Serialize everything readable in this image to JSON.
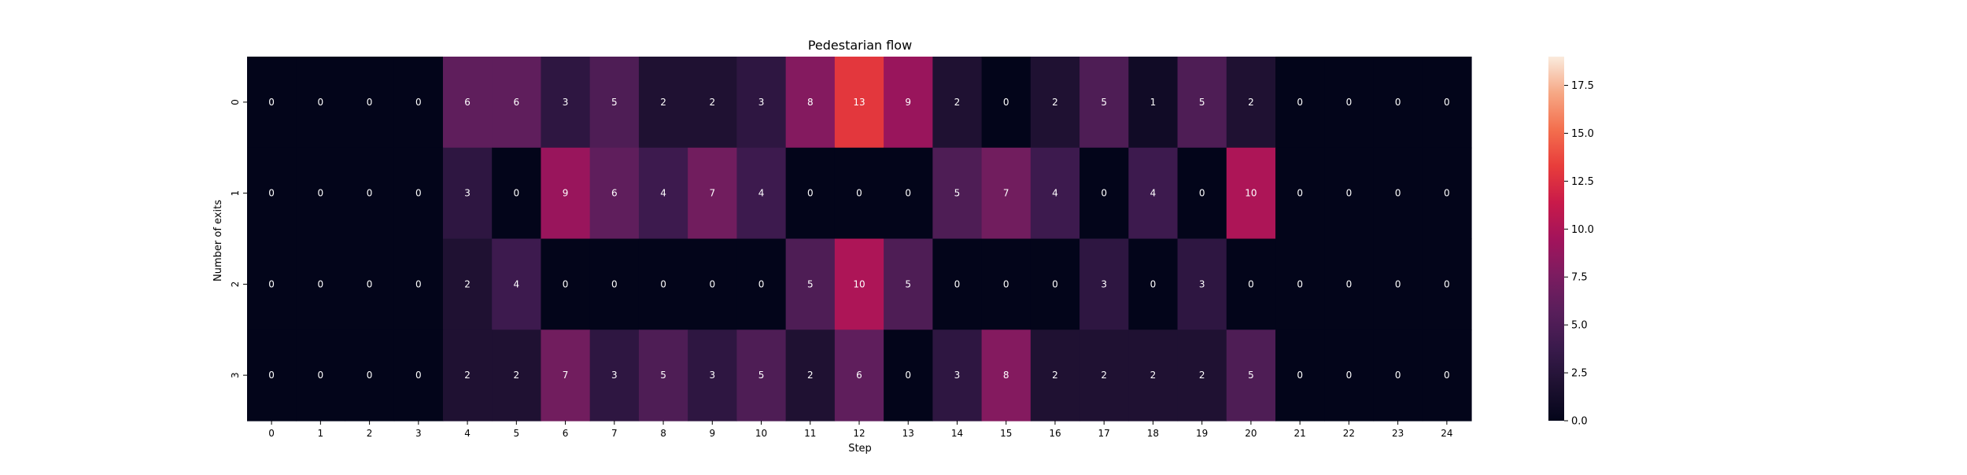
{
  "chart_data": {
    "type": "heatmap",
    "title": "Pedestarian flow",
    "xlabel": "Step",
    "ylabel": "Number of exits",
    "x_categories": [
      "0",
      "1",
      "2",
      "3",
      "4",
      "5",
      "6",
      "7",
      "8",
      "9",
      "10",
      "11",
      "12",
      "13",
      "14",
      "15",
      "16",
      "17",
      "18",
      "19",
      "20",
      "21",
      "22",
      "23",
      "24"
    ],
    "y_categories": [
      "0",
      "1",
      "2",
      "3"
    ],
    "values": [
      [
        0,
        0,
        0,
        0,
        6,
        6,
        3,
        5,
        2,
        2,
        3,
        8,
        13,
        9,
        2,
        0,
        2,
        5,
        1,
        5,
        2,
        0,
        0,
        0,
        0
      ],
      [
        0,
        0,
        0,
        0,
        3,
        0,
        9,
        6,
        4,
        7,
        4,
        0,
        0,
        0,
        5,
        7,
        4,
        0,
        4,
        0,
        10,
        0,
        0,
        0,
        0
      ],
      [
        0,
        0,
        0,
        0,
        2,
        4,
        0,
        0,
        0,
        0,
        0,
        5,
        10,
        5,
        0,
        0,
        0,
        3,
        0,
        3,
        0,
        0,
        0,
        0,
        0
      ],
      [
        0,
        0,
        0,
        0,
        2,
        2,
        7,
        3,
        5,
        3,
        5,
        2,
        6,
        0,
        3,
        8,
        2,
        2,
        2,
        2,
        5,
        0,
        0,
        0,
        0
      ]
    ],
    "colorbar": {
      "min": 0,
      "max": 19,
      "ticks": [
        0.0,
        2.5,
        5.0,
        7.5,
        10.0,
        12.5,
        15.0,
        17.5
      ],
      "tick_labels": [
        "0.0",
        "2.5",
        "5.0",
        "7.5",
        "10.0",
        "12.5",
        "15.0",
        "17.5"
      ]
    },
    "colormap": "rocket",
    "annotations": true,
    "grid": false
  }
}
